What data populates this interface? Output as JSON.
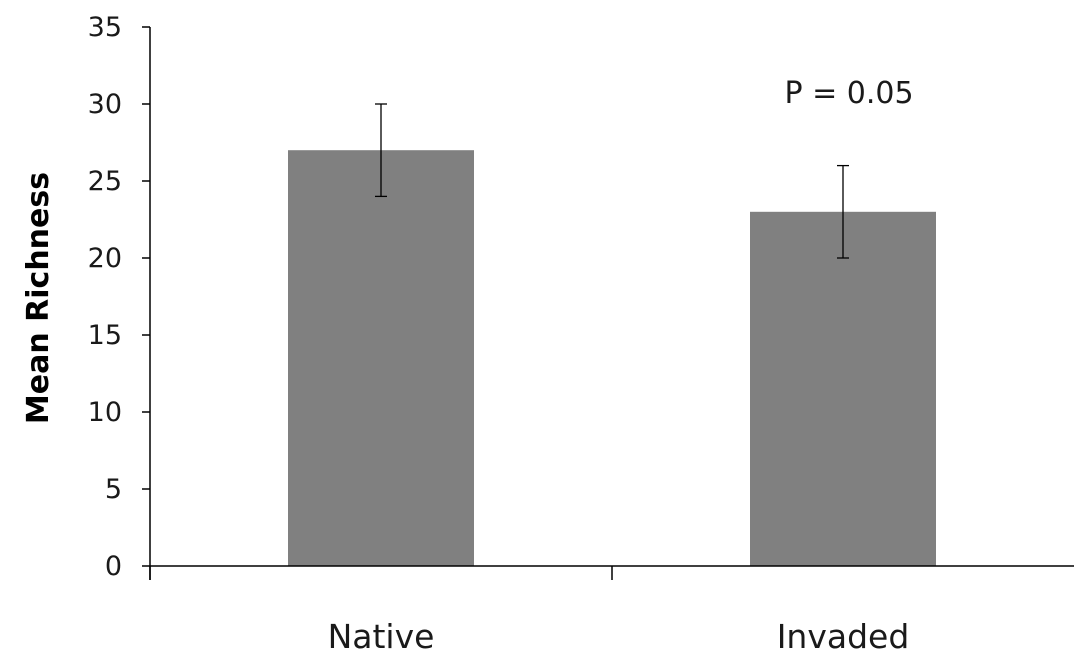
{
  "chart_data": {
    "type": "bar",
    "categories": [
      "Native",
      "Invaded"
    ],
    "values": [
      27,
      23
    ],
    "error": [
      3,
      3
    ],
    "ylabel": "Mean Richness",
    "xlabel": "",
    "ylim": [
      0,
      35
    ],
    "yticks": [
      0,
      5,
      10,
      15,
      20,
      25,
      30,
      35
    ],
    "annotation": "P = 0.05",
    "grid": false,
    "bar_color": "#808080",
    "axis_color": "#000000"
  }
}
